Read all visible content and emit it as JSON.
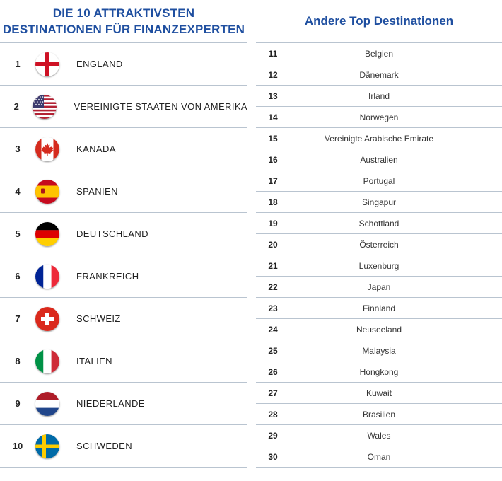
{
  "left": {
    "title_line1": "DIE 10 ATTRAKTIVSTEN",
    "title_line2": "DESTINATIONEN FÜR FINANZEXPERTEN",
    "rows": [
      {
        "rank": "1",
        "country": "ENGLAND",
        "flag": "england-flag-icon"
      },
      {
        "rank": "2",
        "country": "VEREINIGTE STAATEN VON AMERIKA",
        "flag": "usa-flag-icon"
      },
      {
        "rank": "3",
        "country": "KANADA",
        "flag": "canada-flag-icon"
      },
      {
        "rank": "4",
        "country": "SPANIEN",
        "flag": "spain-flag-icon"
      },
      {
        "rank": "5",
        "country": "DEUTSCHLAND",
        "flag": "germany-flag-icon"
      },
      {
        "rank": "6",
        "country": "FRANKREICH",
        "flag": "france-flag-icon"
      },
      {
        "rank": "7",
        "country": "SCHWEIZ",
        "flag": "switzerland-flag-icon"
      },
      {
        "rank": "8",
        "country": "ITALIEN",
        "flag": "italy-flag-icon"
      },
      {
        "rank": "9",
        "country": "NIEDERLANDE",
        "flag": "netherlands-flag-icon"
      },
      {
        "rank": "10",
        "country": "SCHWEDEN",
        "flag": "sweden-flag-icon"
      }
    ]
  },
  "right": {
    "title": "Andere Top Destinationen",
    "rows": [
      {
        "rank": "11",
        "name": "Belgien"
      },
      {
        "rank": "12",
        "name": "Dänemark"
      },
      {
        "rank": "13",
        "name": "Irland"
      },
      {
        "rank": "14",
        "name": "Norwegen"
      },
      {
        "rank": "15",
        "name": "Vereinigte Arabische Emirate"
      },
      {
        "rank": "16",
        "name": "Australien"
      },
      {
        "rank": "17",
        "name": "Portugal"
      },
      {
        "rank": "18",
        "name": "Singapur"
      },
      {
        "rank": "19",
        "name": "Schottland"
      },
      {
        "rank": "20",
        "name": "Österreich"
      },
      {
        "rank": "21",
        "name": "Luxenburg"
      },
      {
        "rank": "22",
        "name": "Japan"
      },
      {
        "rank": "23",
        "name": "Finnland"
      },
      {
        "rank": "24",
        "name": "Neuseeland"
      },
      {
        "rank": "25",
        "name": "Malaysia"
      },
      {
        "rank": "26",
        "name": "Hongkong"
      },
      {
        "rank": "27",
        "name": "Kuwait"
      },
      {
        "rank": "28",
        "name": "Brasilien"
      },
      {
        "rank": "29",
        "name": "Wales"
      },
      {
        "rank": "30",
        "name": "Oman"
      }
    ]
  },
  "colors": {
    "heading": "#1f4fa0",
    "rule": "#b9c4d0"
  }
}
